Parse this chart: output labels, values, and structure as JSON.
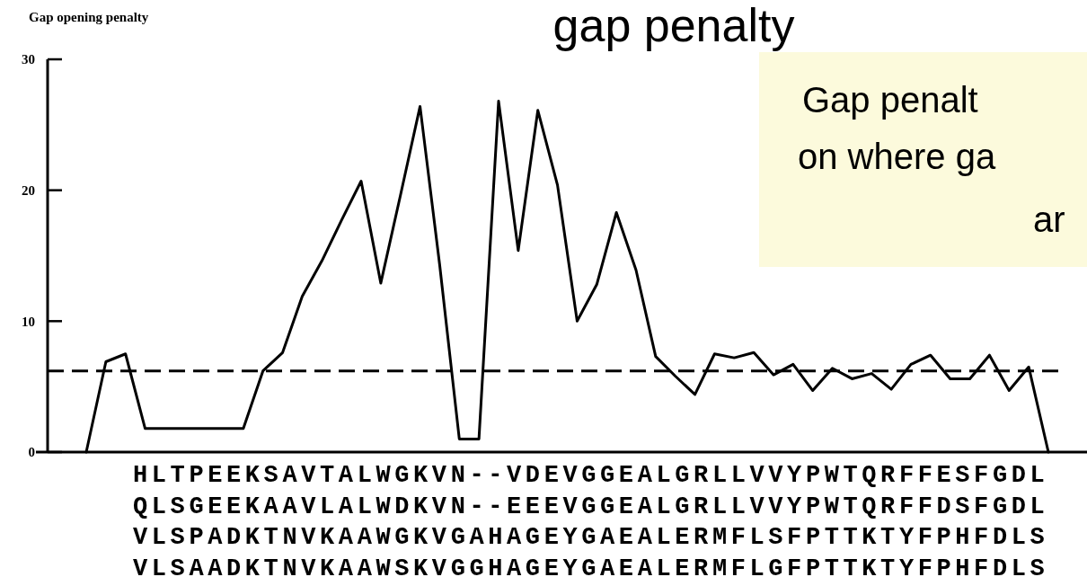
{
  "chart_data": {
    "type": "line",
    "title": "gap penalty",
    "ylabel": "Gap opening penalty",
    "categories": [
      null,
      null,
      null,
      null,
      null,
      null,
      null,
      null,
      null,
      null,
      null,
      null,
      null,
      null,
      null,
      null,
      null,
      null,
      null,
      null,
      null,
      null,
      null,
      null,
      null,
      null,
      null,
      null,
      null,
      null,
      null,
      null,
      null,
      null,
      null,
      null,
      null,
      null,
      null,
      null,
      null,
      null,
      null,
      null,
      null,
      null,
      null,
      null,
      null,
      null
    ],
    "series": [
      {
        "color": "#000000",
        "values": [
          0,
          6.9,
          7.5,
          1.8,
          1.8,
          1.8,
          1.8,
          1.8,
          1.8,
          6.2,
          7.6,
          11.9,
          14.6,
          17.7,
          20.7,
          12.9,
          19.6,
          26.4,
          14.3,
          1.0,
          1.0,
          26.8,
          15.4,
          26.1,
          20.4,
          10.0,
          12.8,
          18.3,
          13.9,
          7.3,
          5.8,
          4.4,
          7.5,
          7.2,
          7.6,
          5.9,
          6.7,
          4.7,
          6.4,
          5.6,
          6.0,
          4.8,
          6.7,
          7.4,
          5.6,
          5.6,
          7.4,
          4.7,
          6.5,
          0
        ]
      }
    ],
    "ylim": [
      0,
      30
    ],
    "yticks": [
      0,
      10,
      20,
      30
    ],
    "marker": "none",
    "line_style": "solid",
    "grid": false,
    "ref_lines": [
      {
        "axis": "y",
        "value": 6.2,
        "line_style": "dashed",
        "color": "#000000"
      }
    ],
    "annotations": [
      "Gap penalt",
      "on where ga",
      "ar",
      "HLTPEEKSAVTALWGKVN--VDEVGGEALGRLLVVYPWTQRFFESFGDL",
      "QLSGEEKAAVLALWDKVN--EEEVGGEALGRLLVVYPWTQRFFDSFGDL",
      "VLSPADKTNVKAAWGKVGAHAGEYGAEALERMFLSFPTTKTYFPHFDLS",
      "VLSAADKTNVKAAWSKVGGHAGEYGAEALERMFLGFPTTKTYFPHFDLS"
    ]
  }
}
